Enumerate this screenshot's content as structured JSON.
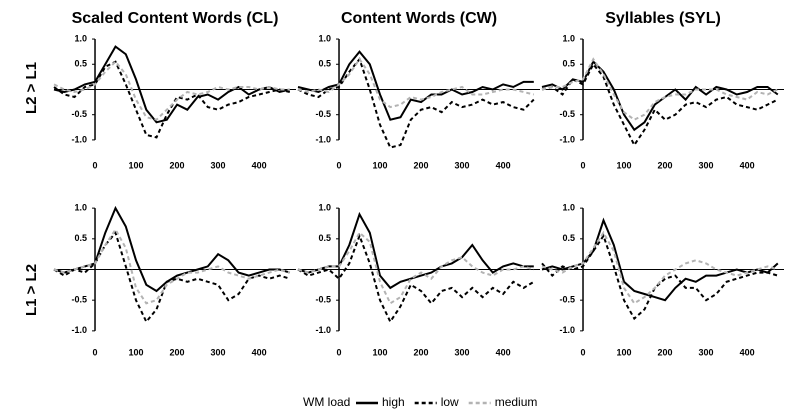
{
  "row_labels": [
    "L2 > L1",
    "L1 > L2"
  ],
  "legend_title": "WM load",
  "chart_data": [
    {
      "type": "line",
      "title": "Scaled Content Words (CL)",
      "x": [
        -100,
        -75,
        -50,
        -25,
        0,
        25,
        50,
        75,
        100,
        125,
        150,
        175,
        200,
        225,
        250,
        275,
        300,
        325,
        350,
        375,
        400,
        425,
        450,
        475
      ],
      "xlim": [
        -100,
        490
      ],
      "xticks": [
        0,
        100,
        200,
        300,
        400
      ],
      "ylim": [
        -1.2,
        1.1
      ],
      "yticks": [
        {
          "value": 1,
          "label": "1.0"
        },
        0.5,
        -0.5,
        {
          "value": -1,
          "label": "-1.0"
        }
      ],
      "series": [
        {
          "name": "high",
          "color": "#000000",
          "dash": false,
          "values": [
            0,
            -0.05,
            0,
            0.1,
            0.15,
            0.5,
            0.85,
            0.7,
            0.2,
            -0.4,
            -0.65,
            -0.6,
            -0.3,
            -0.4,
            -0.15,
            -0.1,
            -0.2,
            -0.05,
            0.05,
            -0.1,
            0,
            0.05,
            -0.05,
            0
          ]
        },
        {
          "name": "low",
          "color": "#000000",
          "dash": true,
          "values": [
            0.05,
            -0.1,
            -0.15,
            0.05,
            0.1,
            0.45,
            0.55,
            0.1,
            -0.4,
            -0.9,
            -0.95,
            -0.5,
            -0.15,
            -0.2,
            -0.1,
            -0.35,
            -0.4,
            -0.3,
            -0.25,
            -0.15,
            -0.1,
            -0.05,
            0,
            -0.05
          ]
        },
        {
          "name": "medium",
          "color": "#b3b3b3",
          "dash": true,
          "values": [
            0.1,
            0,
            -0.05,
            0,
            0.1,
            0.35,
            0.55,
            0.3,
            -0.2,
            -0.55,
            -0.6,
            -0.4,
            -0.2,
            -0.05,
            -0.1,
            -0.05,
            0.05,
            0,
            0.05,
            0.05,
            0,
            0.05,
            0,
            0
          ]
        }
      ]
    },
    {
      "type": "line",
      "title": "Content Words (CW)",
      "x": [
        -100,
        -75,
        -50,
        -25,
        0,
        25,
        50,
        75,
        100,
        125,
        150,
        175,
        200,
        225,
        250,
        275,
        300,
        325,
        350,
        375,
        400,
        425,
        450,
        475
      ],
      "xlim": [
        -100,
        490
      ],
      "xticks": [
        0,
        100,
        200,
        300,
        400
      ],
      "ylim": [
        -1.2,
        1.1
      ],
      "yticks": [
        {
          "value": 1,
          "label": "1.0"
        },
        0.5,
        -0.5,
        {
          "value": -1,
          "label": "-1.0"
        }
      ],
      "series": [
        {
          "name": "high",
          "color": "#000000",
          "dash": false,
          "values": [
            0.05,
            0,
            -0.05,
            0.05,
            0.1,
            0.5,
            0.75,
            0.5,
            -0.1,
            -0.6,
            -0.55,
            -0.2,
            -0.25,
            -0.1,
            -0.1,
            0,
            -0.1,
            -0.05,
            0.05,
            0,
            0.1,
            0.05,
            0.15,
            0.15
          ]
        },
        {
          "name": "low",
          "color": "#000000",
          "dash": true,
          "values": [
            0,
            -0.1,
            -0.15,
            0,
            0.05,
            0.35,
            0.6,
            0,
            -0.7,
            -1.15,
            -1.1,
            -0.6,
            -0.4,
            -0.35,
            -0.45,
            -0.25,
            -0.35,
            -0.3,
            -0.2,
            -0.3,
            -0.25,
            -0.35,
            -0.4,
            -0.2
          ]
        },
        {
          "name": "medium",
          "color": "#b3b3b3",
          "dash": true,
          "values": [
            0,
            -0.05,
            0,
            -0.05,
            0.1,
            0.3,
            0.6,
            0.3,
            -0.2,
            -0.35,
            -0.3,
            -0.15,
            -0.2,
            -0.15,
            -0.05,
            0,
            0.05,
            -0.1,
            -0.1,
            -0.05,
            0,
            0,
            -0.05,
            -0.1
          ]
        }
      ]
    },
    {
      "type": "line",
      "title": "Syllables (SYL)",
      "x": [
        -100,
        -75,
        -50,
        -25,
        0,
        25,
        50,
        75,
        100,
        125,
        150,
        175,
        200,
        225,
        250,
        275,
        300,
        325,
        350,
        375,
        400,
        425,
        450,
        475
      ],
      "xlim": [
        -100,
        490
      ],
      "xticks": [
        0,
        100,
        200,
        300,
        400
      ],
      "ylim": [
        -1.2,
        1.1
      ],
      "yticks": [
        {
          "value": 1,
          "label": "1.0"
        },
        0.5,
        -0.5,
        {
          "value": -1,
          "label": "-1.0"
        }
      ],
      "series": [
        {
          "name": "high",
          "color": "#000000",
          "dash": false,
          "values": [
            0.05,
            0.1,
            0,
            0.2,
            0.15,
            0.55,
            0.35,
            0,
            -0.5,
            -0.8,
            -0.65,
            -0.3,
            -0.15,
            0,
            -0.2,
            0.05,
            -0.1,
            0.05,
            0,
            -0.1,
            -0.05,
            0.05,
            0.05,
            -0.1
          ]
        },
        {
          "name": "low",
          "color": "#000000",
          "dash": true,
          "values": [
            0,
            0.05,
            -0.1,
            0.2,
            0.1,
            0.5,
            0.25,
            -0.3,
            -0.7,
            -1.1,
            -0.8,
            -0.4,
            -0.6,
            -0.5,
            -0.3,
            -0.25,
            -0.35,
            -0.2,
            -0.15,
            -0.3,
            -0.35,
            -0.4,
            -0.3,
            -0.2
          ]
        },
        {
          "name": "medium",
          "color": "#b3b3b3",
          "dash": true,
          "values": [
            0,
            0.05,
            0.05,
            0.15,
            0.2,
            0.6,
            0.3,
            -0.1,
            -0.45,
            -0.6,
            -0.5,
            -0.25,
            -0.15,
            -0.1,
            -0.1,
            0,
            0,
            0,
            -0.1,
            -0.15,
            -0.2,
            -0.05,
            -0.1,
            0
          ]
        }
      ]
    },
    {
      "type": "line",
      "x": [
        -100,
        -75,
        -50,
        -25,
        0,
        25,
        50,
        75,
        100,
        125,
        150,
        175,
        200,
        225,
        250,
        275,
        300,
        325,
        350,
        375,
        400,
        425,
        450,
        475
      ],
      "xlim": [
        -100,
        490
      ],
      "xticks": [
        0,
        100,
        200,
        300,
        400
      ],
      "ylim": [
        -1.1,
        1.1
      ],
      "yticks": [
        {
          "value": 1,
          "label": "1.0"
        },
        0.5,
        -0.5,
        {
          "value": -1,
          "label": "-1.0"
        }
      ],
      "series": [
        {
          "name": "high",
          "color": "#000000",
          "dash": false,
          "values": [
            0,
            -0.05,
            0,
            0.05,
            0.1,
            0.6,
            1.0,
            0.7,
            0.15,
            -0.25,
            -0.35,
            -0.2,
            -0.1,
            -0.05,
            0,
            0.05,
            0.25,
            0.15,
            -0.05,
            -0.1,
            -0.05,
            0,
            0,
            -0.05
          ]
        },
        {
          "name": "low",
          "color": "#000000",
          "dash": true,
          "values": [
            0,
            -0.1,
            0,
            -0.05,
            0.1,
            0.4,
            0.6,
            0.05,
            -0.5,
            -0.85,
            -0.65,
            -0.2,
            -0.15,
            -0.2,
            -0.15,
            -0.2,
            -0.25,
            -0.5,
            -0.4,
            -0.15,
            -0.1,
            -0.15,
            -0.1,
            -0.15
          ]
        },
        {
          "name": "medium",
          "color": "#b3b3b3",
          "dash": true,
          "values": [
            0,
            -0.05,
            0,
            0.05,
            0.1,
            0.4,
            0.65,
            0.35,
            -0.3,
            -0.55,
            -0.5,
            -0.25,
            -0.15,
            -0.05,
            -0.05,
            0,
            0.05,
            -0.05,
            -0.1,
            -0.15,
            -0.1,
            -0.05,
            0,
            -0.05
          ]
        }
      ]
    },
    {
      "type": "line",
      "x": [
        -100,
        -75,
        -50,
        -25,
        0,
        25,
        50,
        75,
        100,
        125,
        150,
        175,
        200,
        225,
        250,
        275,
        300,
        325,
        350,
        375,
        400,
        425,
        450,
        475
      ],
      "xlim": [
        -100,
        490
      ],
      "xticks": [
        0,
        100,
        200,
        300,
        400
      ],
      "ylim": [
        -1.1,
        1.1
      ],
      "yticks": [
        {
          "value": 1,
          "label": "1.0"
        },
        0.5,
        -0.5,
        {
          "value": -1,
          "label": "-1.0"
        }
      ],
      "series": [
        {
          "name": "high",
          "color": "#000000",
          "dash": false,
          "values": [
            0,
            -0.05,
            0,
            0.05,
            0.05,
            0.4,
            0.9,
            0.6,
            -0.1,
            -0.3,
            -0.2,
            -0.15,
            -0.1,
            -0.05,
            0.05,
            0.1,
            0.2,
            0.4,
            0.15,
            -0.05,
            0.05,
            0.1,
            0.05,
            0.05
          ]
        },
        {
          "name": "low",
          "color": "#000000",
          "dash": true,
          "values": [
            0,
            -0.1,
            -0.05,
            0,
            -0.15,
            0.1,
            0.55,
            0.1,
            -0.5,
            -0.85,
            -0.6,
            -0.25,
            -0.35,
            -0.55,
            -0.35,
            -0.3,
            -0.45,
            -0.3,
            -0.45,
            -0.3,
            -0.4,
            -0.2,
            -0.3,
            -0.2
          ]
        },
        {
          "name": "medium",
          "color": "#b3b3b3",
          "dash": true,
          "values": [
            0,
            -0.05,
            0,
            0.05,
            0.05,
            0.3,
            0.6,
            0.45,
            -0.2,
            -0.55,
            -0.45,
            -0.15,
            -0.05,
            -0.15,
            0.05,
            0.15,
            0.2,
            0.05,
            -0.05,
            -0.1,
            0,
            0,
            0.05,
            0
          ]
        }
      ]
    },
    {
      "type": "line",
      "x": [
        -100,
        -75,
        -50,
        -25,
        0,
        25,
        50,
        75,
        100,
        125,
        150,
        175,
        200,
        225,
        250,
        275,
        300,
        325,
        350,
        375,
        400,
        425,
        450,
        475
      ],
      "xlim": [
        -100,
        490
      ],
      "xticks": [
        0,
        100,
        200,
        300,
        400
      ],
      "ylim": [
        -1.1,
        1.1
      ],
      "yticks": [
        {
          "value": 1,
          "label": "1.0"
        },
        0.5,
        -0.5,
        {
          "value": -1,
          "label": "-1.0"
        }
      ],
      "series": [
        {
          "name": "high",
          "color": "#000000",
          "dash": false,
          "values": [
            0,
            0.05,
            0,
            0.05,
            0.1,
            0.3,
            0.8,
            0.4,
            -0.2,
            -0.35,
            -0.4,
            -0.45,
            -0.5,
            -0.3,
            -0.15,
            -0.2,
            -0.1,
            -0.1,
            -0.05,
            0,
            -0.05,
            0,
            -0.05,
            0.1
          ]
        },
        {
          "name": "low",
          "color": "#000000",
          "dash": true,
          "values": [
            0.1,
            -0.1,
            0.05,
            0,
            0.05,
            0.3,
            0.55,
            0.05,
            -0.5,
            -0.8,
            -0.65,
            -0.3,
            -0.15,
            -0.1,
            -0.3,
            -0.3,
            -0.5,
            -0.4,
            -0.2,
            -0.15,
            -0.1,
            -0.05,
            -0.05,
            -0.1
          ]
        },
        {
          "name": "medium",
          "color": "#b3b3b3",
          "dash": true,
          "values": [
            0.05,
            0,
            -0.05,
            0.05,
            0.1,
            0.35,
            0.6,
            0.3,
            -0.3,
            -0.55,
            -0.45,
            -0.3,
            -0.1,
            0,
            0.1,
            0.15,
            0.1,
            0,
            -0.05,
            -0.1,
            -0.05,
            0,
            0.05,
            0
          ]
        }
      ]
    }
  ]
}
